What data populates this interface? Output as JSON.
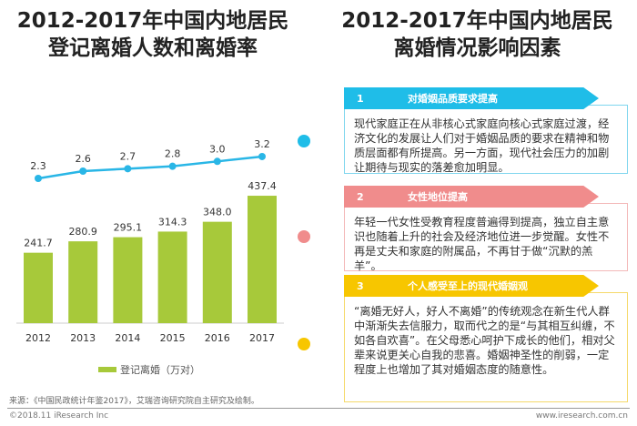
{
  "left_title": [
    "2012-2017年中国内地居民",
    "登记离婚人数和离婚率"
  ],
  "right_title": [
    "2012-2017年中国内地居民",
    "离婚情况影响因素"
  ],
  "chart_data": {
    "type": "bar+line",
    "categories": [
      "2012",
      "2013",
      "2014",
      "2015",
      "2016",
      "2017"
    ],
    "series": [
      {
        "name": "登记离婚（万对）",
        "type": "bar",
        "color": "#a7c93a",
        "values": [
          241.7,
          280.9,
          295.1,
          314.3,
          348.0,
          437.4
        ]
      },
      {
        "type": "line",
        "color": "#29b6e6",
        "values": [
          2.3,
          2.6,
          2.7,
          2.8,
          3.0,
          3.2
        ]
      }
    ],
    "legend": "bottom",
    "grid": false
  },
  "legend_label": "登记离婚（万对）",
  "source": "来源：《中国民政统计年鉴2017》，艾瑞咨询研究院自主研究及绘制。",
  "footer": {
    "left": "©2018.11 iResearch Inc",
    "right": "www.iresearch.com.cn"
  },
  "factors": [
    {
      "num": "1",
      "title": "对婚姻品质要求提高",
      "color": "#1fbde8",
      "text": "现代家庭正在从非核心式家庭向核心式家庭过渡，经济文化的发展让人们对于婚姻品质的要求在精神和物质层面都有所提高。另一方面，现代社会压力的加剧让期待与现实的落差愈加明显。"
    },
    {
      "num": "2",
      "title": "女性地位提高",
      "color": "#f08c8c",
      "text": "年轻一代女性受教育程度普遍得到提高，独立自主意识也随着上升的社会及经济地位进一步觉醒。女性不再是丈夫和家庭的附属品，不再甘于做“沉默的羔羊”。"
    },
    {
      "num": "3",
      "title": "个人感受至上的现代婚姻观",
      "color": "#f7c600",
      "text": "“离婚无好人，好人不离婚”的传统观念在新生代人群中渐渐失去信服力，取而代之的是“与其相互纠缠，不如各自欢喜”。在父母悉心呵护下成长的他们，相对父辈来说更关心自我的悲喜。婚姻神圣性的削弱，一定程度上也增加了其对婚姻态度的随意性。"
    }
  ]
}
